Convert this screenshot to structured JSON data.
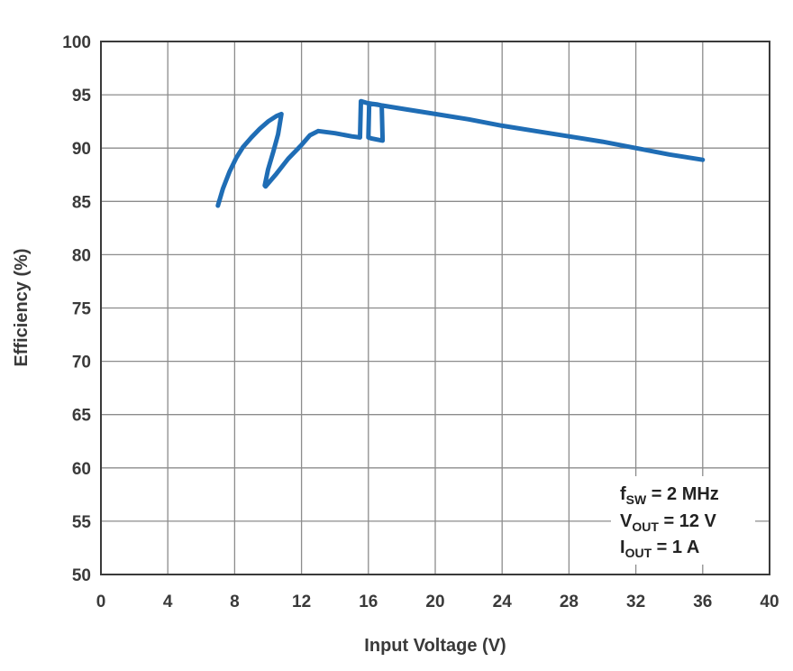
{
  "chart_data": {
    "type": "line",
    "title": "",
    "xlabel": "Input Voltage (V)",
    "ylabel": "Efficiency (%)",
    "xlim": [
      0,
      40
    ],
    "ylim": [
      50,
      100
    ],
    "x_ticks": [
      0,
      4,
      8,
      12,
      16,
      20,
      24,
      28,
      32,
      36,
      40
    ],
    "y_ticks": [
      50,
      55,
      60,
      65,
      70,
      75,
      80,
      85,
      90,
      95,
      100
    ],
    "grid": true,
    "legend": "none",
    "line_color": "#1f6db5",
    "series": [
      {
        "x": [
          7.0,
          7.3,
          7.7,
          8.1,
          8.5,
          9.0,
          9.5,
          10.0,
          10.5,
          10.8,
          10.6,
          10.3,
          10.0,
          9.8,
          9.85,
          10.5,
          11.2,
          12.0,
          12.5,
          13.0,
          14.0,
          15.0,
          15.5,
          15.55,
          16.0,
          16.5,
          16.8,
          16.85,
          16.5,
          16.2,
          16.0,
          16.05,
          18,
          20,
          22,
          24,
          26,
          28,
          30,
          32,
          34,
          36
        ],
        "y": [
          84.6,
          86.2,
          87.8,
          89.1,
          90.1,
          91.0,
          91.8,
          92.5,
          93.0,
          93.2,
          91.3,
          89.6,
          88.0,
          86.5,
          86.4,
          87.6,
          89.0,
          90.3,
          91.2,
          91.6,
          91.4,
          91.1,
          91.0,
          94.4,
          94.2,
          94.1,
          94.0,
          90.7,
          90.8,
          90.9,
          91.0,
          94.2,
          93.7,
          93.2,
          92.7,
          92.1,
          91.6,
          91.1,
          90.6,
          90.0,
          89.4,
          88.9
        ]
      }
    ],
    "annotations": [
      {
        "base": "f",
        "sub": "SW",
        "rest": " = 2 MHz"
      },
      {
        "base": "V",
        "sub": "OUT",
        "rest": " = 12 V"
      },
      {
        "base": "I",
        "sub": "OUT",
        "rest": " = 1 A"
      }
    ]
  }
}
